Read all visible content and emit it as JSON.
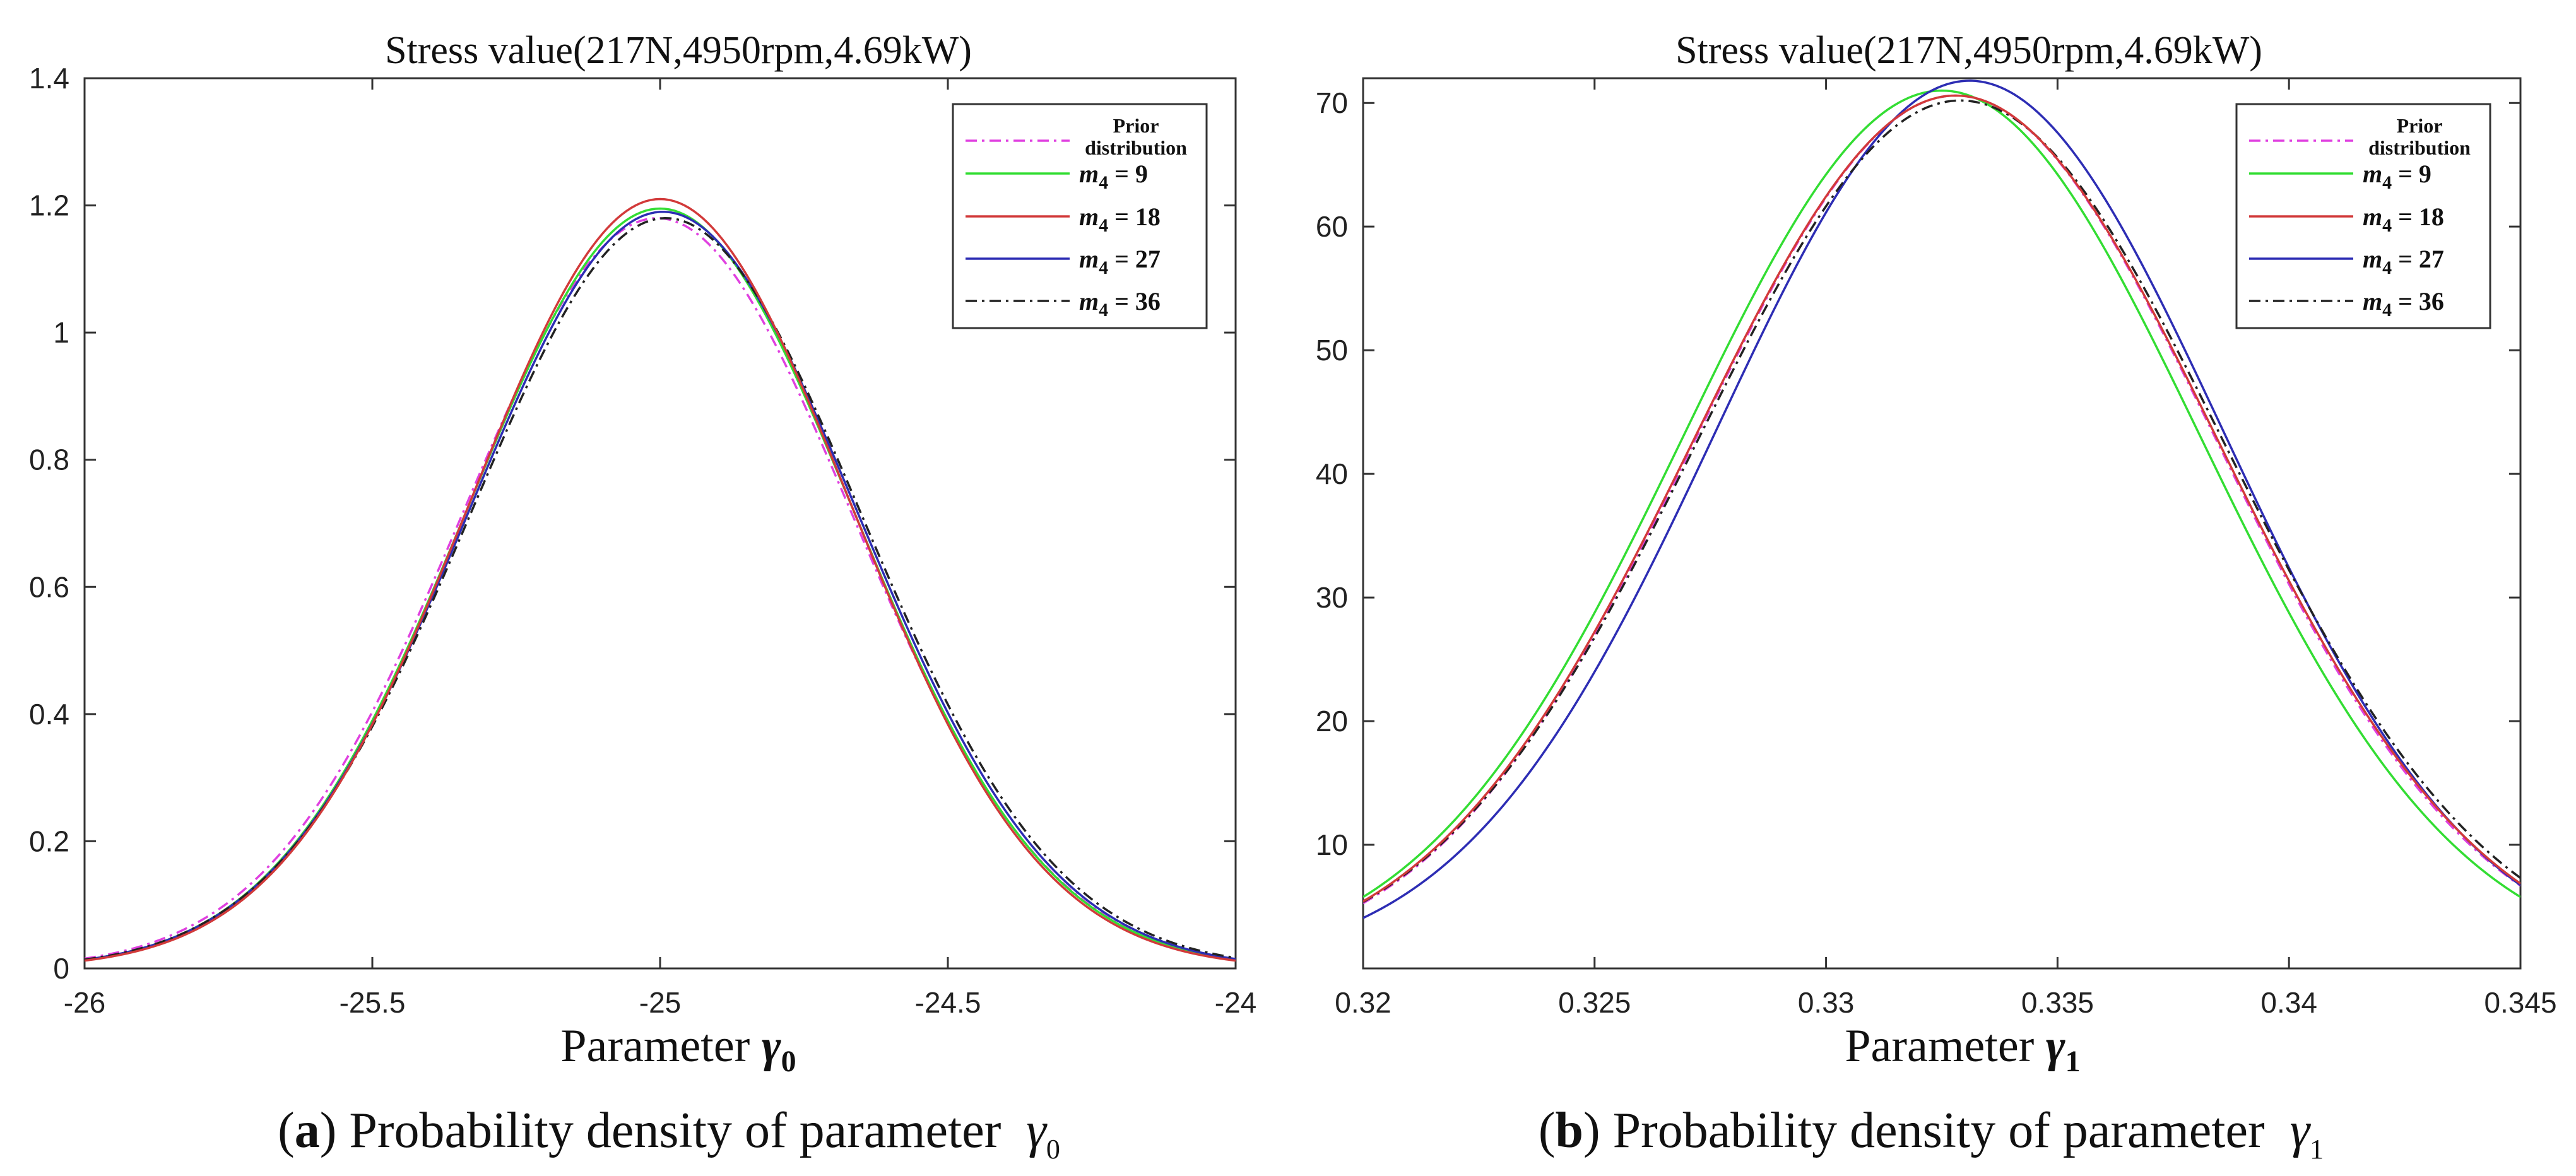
{
  "chart_data": [
    {
      "type": "line",
      "title": "Stress value(217N,4950rpm,4.69kW)",
      "xlabel_prefix": "Parameter ",
      "xlabel_symbol": "γ",
      "xlabel_subscript": "0",
      "ylabel": "",
      "xlim": [
        -26,
        -24
      ],
      "ylim": [
        0,
        1.4
      ],
      "xticks": [
        -26,
        -25.5,
        -25,
        -24.5,
        -24
      ],
      "xtick_labels": [
        "-26",
        "-25.5",
        "-25",
        "-24.5",
        "-24"
      ],
      "yticks": [
        0,
        0.2,
        0.4,
        0.6,
        0.8,
        1,
        1.2,
        1.4
      ],
      "ytick_labels": [
        "0",
        "0.2",
        "0.4",
        "0.6",
        "0.8",
        "1",
        "1.2",
        "1.4"
      ],
      "legend_position": "top-right",
      "series": [
        {
          "name": "Prior distribution",
          "color": "#e040e0",
          "dash": "dashdot",
          "mean": -25.005,
          "peak": 1.18,
          "sd": 0.338
        },
        {
          "name": "m4 = 9",
          "color": "#33dd33",
          "dash": "solid",
          "mean": -25.0,
          "peak": 1.195,
          "sd": 0.334
        },
        {
          "name": "m4 = 18",
          "color": "#d23a3a",
          "dash": "solid",
          "mean": -25.0,
          "peak": 1.21,
          "sd": 0.33
        },
        {
          "name": "m4 = 27",
          "color": "#2d2db4",
          "dash": "solid",
          "mean": -24.995,
          "peak": 1.19,
          "sd": 0.336
        },
        {
          "name": "m4 = 36",
          "color": "#222222",
          "dash": "dashdot",
          "mean": -24.99,
          "peak": 1.18,
          "sd": 0.339
        }
      ],
      "caption_letter": "a",
      "caption_text": ") Probability density of parameter ",
      "caption_symbol": "γ",
      "caption_subscript": "0"
    },
    {
      "type": "line",
      "title": "Stress value(217N,4950rpm,4.69kW)",
      "xlabel_prefix": "Parameter ",
      "xlabel_symbol": "γ",
      "xlabel_subscript": "1",
      "ylabel": "",
      "xlim": [
        0.32,
        0.345
      ],
      "ylim": [
        0,
        72
      ],
      "xticks": [
        0.32,
        0.325,
        0.33,
        0.335,
        0.34,
        0.345
      ],
      "xtick_labels": [
        "0.32",
        "0.325",
        "0.33",
        "0.335",
        "0.34",
        "0.345"
      ],
      "yticks": [
        10,
        20,
        30,
        40,
        50,
        60,
        70
      ],
      "ytick_labels": [
        "10",
        "20",
        "30",
        "40",
        "50",
        "60",
        "70"
      ],
      "legend_position": "top-right",
      "series": [
        {
          "name": "Prior distribution",
          "color": "#e040e0",
          "dash": "dashdot",
          "mean": 0.3328,
          "peak": 70.6,
          "sd": 0.00562
        },
        {
          "name": "m4 = 9",
          "color": "#33dd33",
          "dash": "solid",
          "mean": 0.3325,
          "peak": 71.0,
          "sd": 0.00558
        },
        {
          "name": "m4 = 18",
          "color": "#d23a3a",
          "dash": "solid",
          "mean": 0.3328,
          "peak": 70.6,
          "sd": 0.00565
        },
        {
          "name": "m4 = 27",
          "color": "#2d2db4",
          "dash": "solid",
          "mean": 0.3331,
          "peak": 71.8,
          "sd": 0.00547
        },
        {
          "name": "m4 = 36",
          "color": "#222222",
          "dash": "dashdot",
          "mean": 0.3329,
          "peak": 70.2,
          "sd": 0.00569
        }
      ],
      "caption_letter": "b",
      "caption_text": ") Probability density of parameter ",
      "caption_symbol": "γ",
      "caption_subscript": "1"
    }
  ],
  "legend": {
    "prior_line1": "Prior",
    "prior_line2": "distribution",
    "m_symbol": "m",
    "m_subscript": "4",
    "entries": [
      {
        "eq": " = 9"
      },
      {
        "eq": " = 18"
      },
      {
        "eq": " = 27"
      },
      {
        "eq": " = 36"
      }
    ]
  }
}
